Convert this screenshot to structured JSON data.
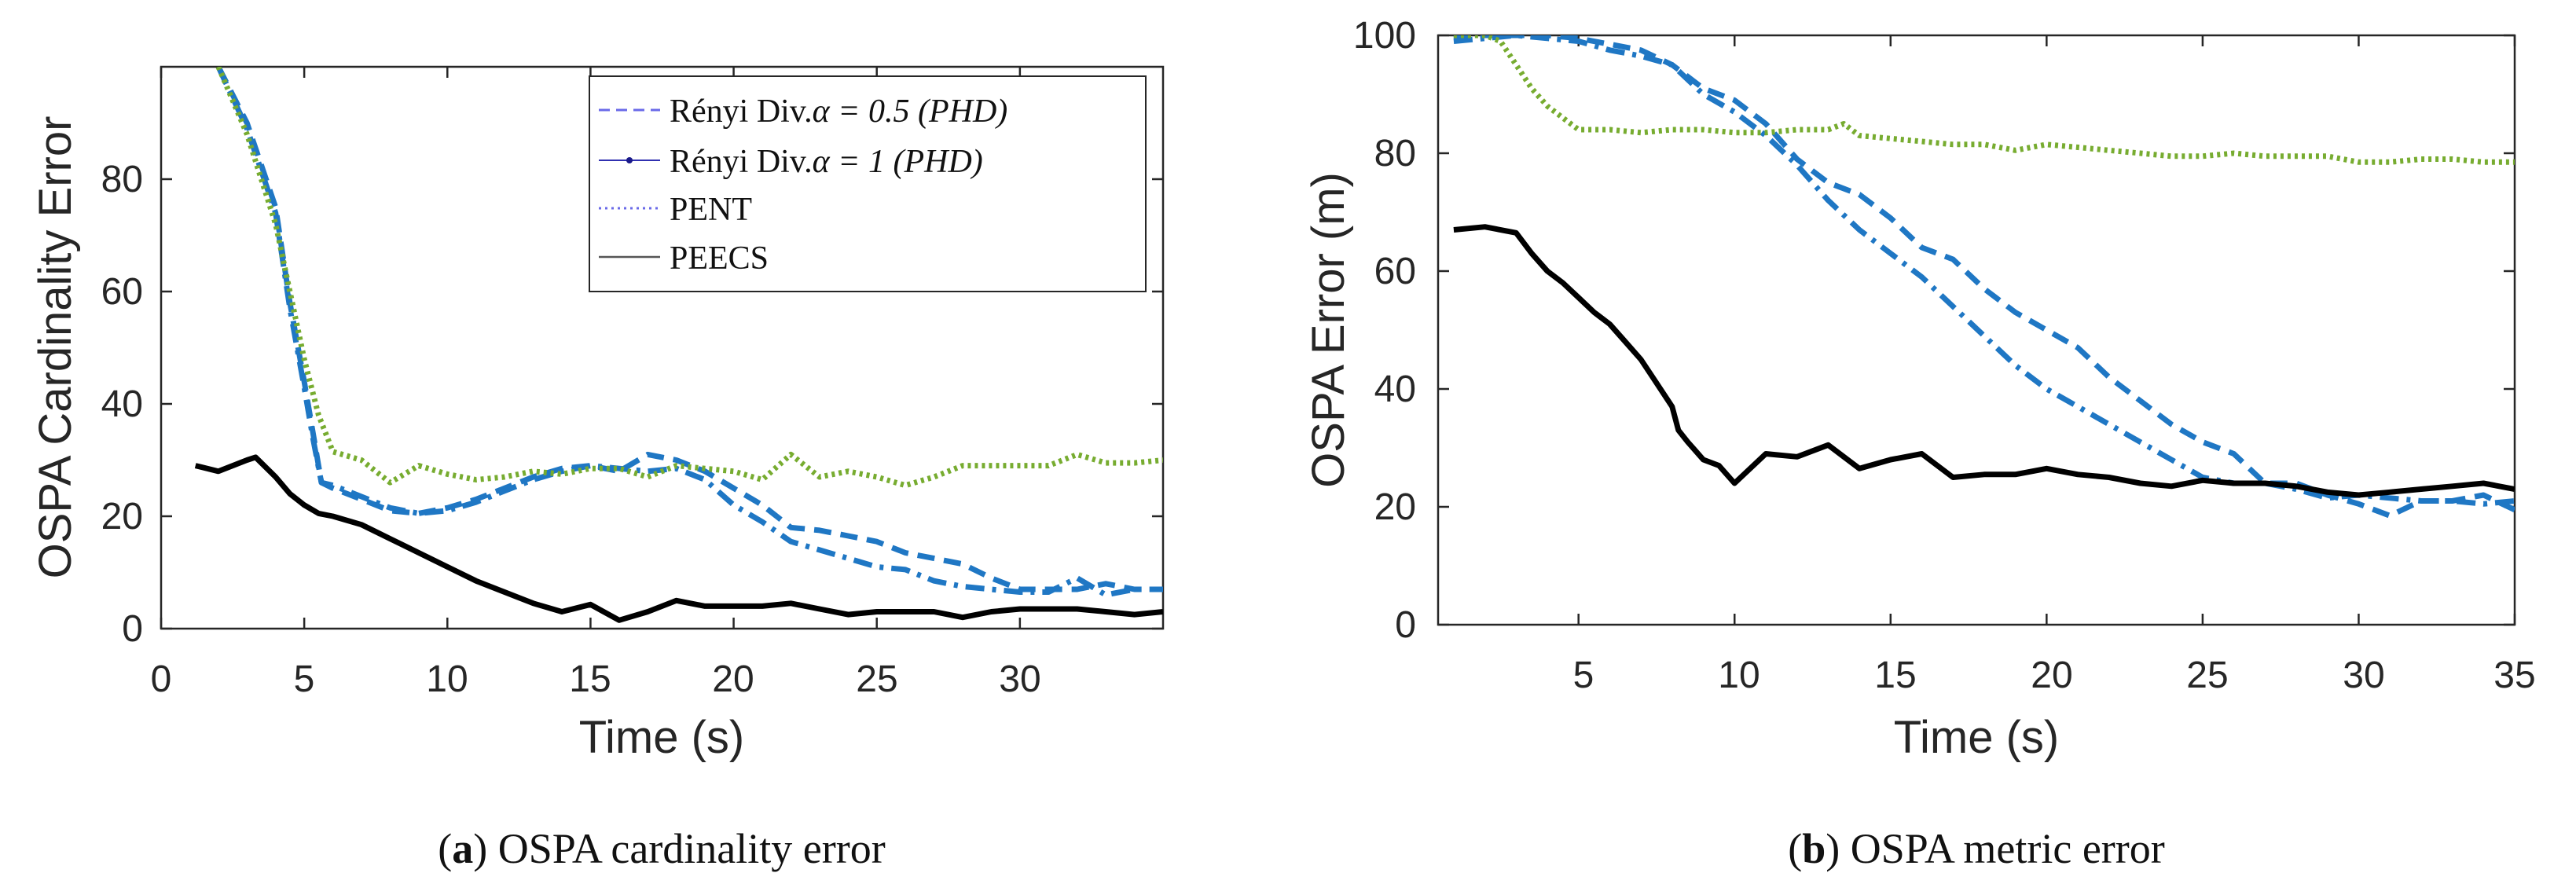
{
  "colors": {
    "renyi05": "#1f77c4",
    "renyi1": "#1f77c4",
    "pent": "#77ac30",
    "peecs": "#000000",
    "legend_line": "#6a6ae8",
    "axis": "#262626"
  },
  "chart_data": [
    {
      "type": "line",
      "id": "a",
      "title": "",
      "caption_letter": "a",
      "caption_open": "(",
      "caption_close": ")",
      "caption_text": " OSPA cardinality error",
      "xlabel": "Time (s)",
      "ylabel": "OSPA Cardinality Error",
      "xlim": [
        0,
        35
      ],
      "ylim": [
        0,
        100
      ],
      "xticks": [
        "0",
        "5",
        "10",
        "15",
        "20",
        "25",
        "30"
      ],
      "yticks": [
        "0",
        "20",
        "40",
        "60",
        "80"
      ],
      "legend": [
        "Rényi Div.",
        "Rényi Div.",
        "PENT",
        "PEECS"
      ],
      "legend_math": [
        "α = 0.5 (PHD)",
        "α = 1 (PHD)",
        "",
        ""
      ],
      "series": [
        {
          "name": "Rényi Div. α = 0.5 (PHD)",
          "style": "dashed",
          "x": [
            2,
            3,
            4,
            4.5,
            5,
            5.3,
            5.6,
            6,
            7,
            8,
            9,
            10,
            11,
            12,
            13,
            14,
            15,
            16,
            17,
            18,
            19,
            20,
            21,
            22,
            23,
            24,
            25,
            26,
            27,
            28,
            29,
            30,
            31,
            32,
            33,
            34,
            35
          ],
          "y": [
            100,
            90,
            75,
            58,
            44,
            35,
            26,
            25,
            23,
            21,
            20.5,
            21.5,
            23,
            25,
            27,
            28.5,
            29,
            28,
            31,
            30,
            28,
            25,
            22,
            18,
            17.5,
            16.5,
            15.5,
            13.5,
            12.5,
            11.5,
            9,
            7,
            7,
            7,
            8,
            7,
            7
          ]
        },
        {
          "name": "Rényi Div. α = 1 (PHD)",
          "style": "dashdot",
          "x": [
            2,
            3,
            4,
            4.5,
            5,
            5.3,
            5.6,
            6,
            7,
            8,
            9,
            10,
            11,
            12,
            13,
            14,
            15,
            16,
            17,
            18,
            19,
            20,
            21,
            22,
            23,
            24,
            25,
            26,
            27,
            28,
            29,
            30,
            31,
            32,
            33,
            34,
            35
          ],
          "y": [
            100,
            89,
            74,
            57,
            43,
            34,
            26,
            25.5,
            23.5,
            21.5,
            20.5,
            21,
            22.5,
            24.5,
            26.5,
            28,
            29,
            28.5,
            28,
            28.5,
            26.5,
            22,
            19,
            15.5,
            14,
            12.5,
            11,
            10.5,
            8.5,
            7.5,
            7,
            6.5,
            6.5,
            9,
            6,
            7,
            7
          ]
        },
        {
          "name": "PENT",
          "style": "dotted",
          "x": [
            2,
            3,
            4,
            5,
            5.5,
            6,
            7,
            8,
            9,
            10,
            11,
            12,
            13,
            14,
            15,
            16,
            17,
            18,
            19,
            20,
            21,
            22,
            23,
            24,
            25,
            26,
            27,
            28,
            29,
            30,
            31,
            32,
            33,
            34,
            35
          ],
          "y": [
            100,
            88,
            72,
            48,
            38,
            31.5,
            30,
            26,
            29,
            27.5,
            26.5,
            27,
            28,
            27.5,
            28.5,
            28.5,
            27,
            29,
            28.5,
            28,
            26.5,
            31,
            27,
            28,
            27,
            25.5,
            27,
            29,
            29,
            29,
            29,
            31,
            29.5,
            29.5,
            30
          ]
        },
        {
          "name": "PEECS",
          "style": "solid",
          "x": [
            1.2,
            2,
            3,
            3.3,
            4,
            4.5,
            5,
            5.5,
            6,
            7,
            8,
            9,
            10,
            11,
            12,
            13,
            14,
            15,
            16,
            17,
            18,
            19,
            20,
            21,
            22,
            23,
            24,
            25,
            26,
            27,
            28,
            29,
            30,
            31,
            32,
            33,
            34,
            35
          ],
          "y": [
            29,
            28,
            30,
            30.5,
            27,
            24,
            22,
            20.5,
            20,
            18.5,
            16,
            13.5,
            11,
            8.5,
            6.5,
            4.5,
            3,
            4.3,
            1.5,
            3,
            5,
            4,
            4,
            4,
            4.5,
            3.5,
            2.5,
            3,
            3,
            3,
            2,
            3,
            3.5,
            3.5,
            3.5,
            3,
            2.5,
            3
          ]
        }
      ]
    },
    {
      "type": "line",
      "id": "b",
      "title": "",
      "caption_letter": "b",
      "caption_open": "(",
      "caption_close": ")",
      "caption_text": " OSPA metric error",
      "xlabel": "Time (s)",
      "ylabel": "OSPA Error (m)",
      "xlim": [
        0.5,
        35
      ],
      "ylim": [
        0,
        100
      ],
      "xticks": [
        "5",
        "10",
        "15",
        "20",
        "25",
        "30",
        "35"
      ],
      "yticks": [
        "0",
        "20",
        "40",
        "60",
        "80",
        "100"
      ],
      "series": [
        {
          "name": "Rényi Div. α = 0.5 (PHD)",
          "style": "dashed",
          "x": [
            1,
            2,
            3,
            4,
            5,
            6,
            7,
            8,
            9,
            10,
            11,
            12,
            13,
            14,
            15,
            16,
            17,
            18,
            19,
            20,
            21,
            22,
            23,
            24,
            25,
            26,
            27,
            28,
            29,
            30,
            31,
            32,
            33,
            34,
            35
          ],
          "y": [
            99.5,
            100,
            100,
            100,
            99.5,
            98.5,
            97.5,
            95,
            91,
            89,
            85,
            79,
            75,
            73,
            69,
            64,
            62,
            57,
            53,
            50,
            47,
            42,
            38,
            34,
            31,
            29,
            24,
            24,
            22,
            20.5,
            18.5,
            21,
            21,
            22,
            19.5
          ]
        },
        {
          "name": "Rényi Div. α = 1 (PHD)",
          "style": "dashdot",
          "x": [
            1,
            2,
            3,
            4,
            5,
            6,
            7,
            8,
            9,
            10,
            11,
            12,
            13,
            14,
            15,
            16,
            17,
            18,
            19,
            20,
            21,
            22,
            23,
            24,
            25,
            26,
            27,
            28,
            29,
            30,
            31,
            32,
            33,
            34,
            35
          ],
          "y": [
            99,
            99.5,
            100,
            99.5,
            99,
            97.5,
            96.5,
            95,
            90,
            87,
            83,
            78,
            72,
            67,
            63,
            59,
            54,
            49,
            44,
            40,
            37,
            34,
            31,
            28,
            25,
            24,
            24,
            23,
            21.5,
            22,
            21.5,
            21,
            21,
            20.5,
            21
          ]
        },
        {
          "name": "PENT",
          "style": "dotted",
          "x": [
            1,
            2,
            2.5,
            3,
            3.5,
            4,
            4.5,
            5,
            6,
            7,
            8,
            9,
            10,
            11,
            12,
            13,
            13.5,
            14,
            15,
            16,
            17,
            18,
            19,
            20,
            21,
            22,
            23,
            24,
            25,
            26,
            27,
            28,
            29,
            30,
            31,
            32,
            33,
            34,
            35
          ],
          "y": [
            100,
            100,
            99,
            95,
            91,
            88,
            86,
            84,
            84,
            83.5,
            84,
            84,
            83.5,
            83.5,
            84,
            84,
            85,
            83,
            82.5,
            82,
            81.5,
            81.5,
            80.5,
            81.5,
            81,
            80.5,
            80,
            79.5,
            79.5,
            80,
            79.5,
            79.5,
            79.5,
            78.5,
            78.5,
            79,
            79,
            78.5,
            78.5
          ]
        },
        {
          "name": "PEECS",
          "style": "solid",
          "x": [
            1,
            2,
            3,
            3.5,
            4,
            4.5,
            5,
            5.5,
            6,
            6.5,
            7,
            7.5,
            8,
            8.2,
            8.5,
            9,
            9.5,
            10,
            11,
            12,
            13,
            14,
            15,
            16,
            17,
            18,
            19,
            20,
            21,
            22,
            23,
            24,
            25,
            26,
            27,
            28,
            29,
            30,
            31,
            32,
            33,
            34,
            35
          ],
          "y": [
            67,
            67.5,
            66.5,
            63,
            60,
            58,
            55.5,
            53,
            51,
            48,
            45,
            41,
            37,
            33,
            31,
            28,
            27,
            24,
            29,
            28.5,
            30.5,
            26.5,
            28,
            29,
            25,
            25.5,
            25.5,
            26.5,
            25.5,
            25,
            24,
            23.5,
            24.5,
            24,
            24,
            23.5,
            22.5,
            22,
            22.5,
            23,
            23.5,
            24,
            23
          ]
        }
      ]
    }
  ]
}
